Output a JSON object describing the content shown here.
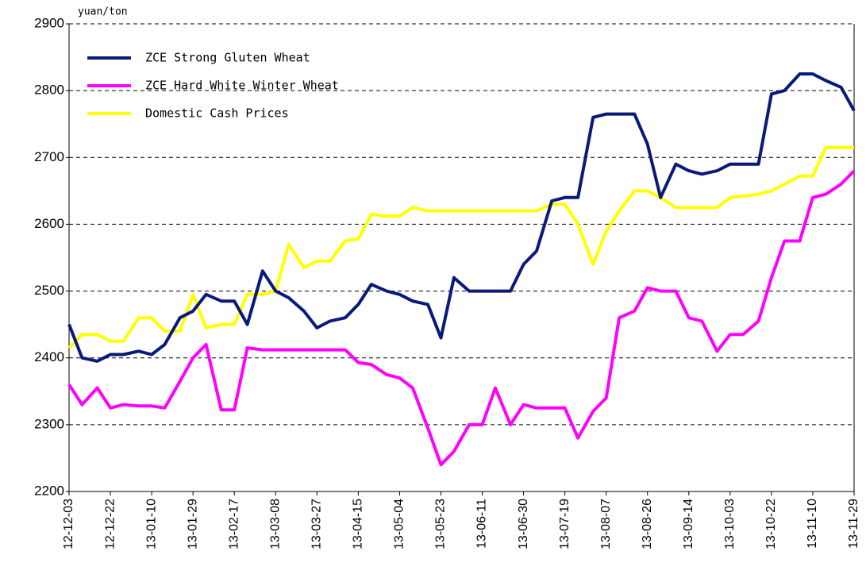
{
  "chart_data": {
    "type": "line",
    "y_unit": "yuan/ton",
    "x": [
      "12-12-03",
      "12-12-09",
      "12-12-16",
      "12-12-22",
      "12-12-28",
      "13-01-04",
      "13-01-10",
      "13-01-16",
      "13-01-23",
      "13-01-29",
      "13-02-04",
      "13-02-11",
      "13-02-17",
      "13-02-23",
      "13-03-02",
      "13-03-08",
      "13-03-14",
      "13-03-21",
      "13-03-27",
      "13-04-02",
      "13-04-09",
      "13-04-15",
      "13-04-21",
      "13-04-28",
      "13-05-04",
      "13-05-10",
      "13-05-17",
      "13-05-23",
      "13-05-29",
      "13-06-05",
      "13-06-11",
      "13-06-17",
      "13-06-24",
      "13-06-30",
      "13-07-06",
      "13-07-13",
      "13-07-19",
      "13-07-25",
      "13-08-01",
      "13-08-07",
      "13-08-13",
      "13-08-20",
      "13-08-26",
      "13-09-01",
      "13-09-08",
      "13-09-14",
      "13-09-20",
      "13-09-27",
      "13-10-03",
      "13-10-09",
      "13-10-16",
      "13-10-22",
      "13-10-28",
      "13-11-04",
      "13-11-10",
      "13-11-16",
      "13-11-23",
      "13-11-29"
    ],
    "series": [
      {
        "name": "ZCE Strong Gluten Wheat",
        "color": "#0a1a7a",
        "values": [
          2450,
          2400,
          2395,
          2405,
          2405,
          2410,
          2405,
          2420,
          2460,
          2470,
          2495,
          2485,
          2485,
          2450,
          2530,
          2500,
          2490,
          2470,
          2445,
          2455,
          2460,
          2480,
          2510,
          2500,
          2495,
          2485,
          2480,
          2430,
          2520,
          2500,
          2500,
          2500,
          2500,
          2540,
          2560,
          2635,
          2640,
          2640,
          2760,
          2765,
          2765,
          2765,
          2720,
          2640,
          2690,
          2680,
          2675,
          2680,
          2690,
          2690,
          2690,
          2795,
          2800,
          2825,
          2825,
          2815,
          2805,
          2770
        ]
      },
      {
        "name": "ZCE Hard White Winter Wheat",
        "color": "#ff00ff",
        "values": [
          2360,
          2330,
          2355,
          2325,
          2330,
          2328,
          2328,
          2325,
          2365,
          2400,
          2420,
          2322,
          2322,
          2415,
          2412,
          2412,
          2412,
          2412,
          2412,
          2412,
          2412,
          2393,
          2390,
          2375,
          2370,
          2355,
          2295,
          2240,
          2260,
          2300,
          2300,
          2355,
          2300,
          2330,
          2325,
          2325,
          2325,
          2280,
          2320,
          2340,
          2460,
          2470,
          2505,
          2500,
          2500,
          2460,
          2455,
          2410,
          2435,
          2435,
          2455,
          2520,
          2575,
          2575,
          2640,
          2645,
          2660,
          2680
        ]
      },
      {
        "name": "Domestic Cash Prices",
        "color": "#ffff00",
        "values": [
          2415,
          2435,
          2435,
          2425,
          2425,
          2460,
          2460,
          2440,
          2440,
          2495,
          2445,
          2450,
          2450,
          2495,
          2495,
          2500,
          2570,
          2535,
          2545,
          2545,
          2575,
          2578,
          2615,
          2612,
          2612,
          2625,
          2620,
          2620,
          2620,
          2620,
          2620,
          2620,
          2620,
          2620,
          2620,
          2630,
          2630,
          2600,
          2540,
          2590,
          2620,
          2650,
          2650,
          2640,
          2625,
          2625,
          2625,
          2625,
          2640,
          2642,
          2645,
          2650,
          2660,
          2672,
          2672,
          2715,
          2715,
          2715
        ]
      }
    ],
    "xlim": [
      "12-12-03",
      "13-11-29"
    ],
    "xticks": [
      "12-12-03",
      "12-12-22",
      "13-01-10",
      "13-01-29",
      "13-02-17",
      "13-03-08",
      "13-03-27",
      "13-04-15",
      "13-05-04",
      "13-05-23",
      "13-06-11",
      "13-06-30",
      "13-07-19",
      "13-08-07",
      "13-08-26",
      "13-09-14",
      "13-10-03",
      "13-10-22",
      "13-11-10",
      "13-11-29"
    ],
    "ylim": [
      2200,
      2900
    ],
    "yticks": [
      2200,
      2300,
      2400,
      2500,
      2600,
      2700,
      2800,
      2900
    ],
    "grid": true,
    "legend": "upper left"
  }
}
